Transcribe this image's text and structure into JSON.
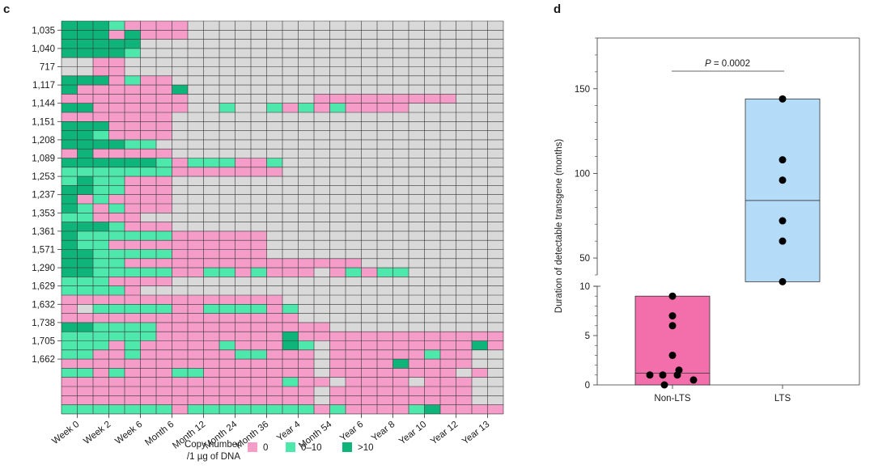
{
  "chart_data": [
    {
      "panel": "c",
      "type": "heatmap",
      "row_labels": [
        "1,035",
        "1,040",
        "717",
        "1,117",
        "1,144",
        "1,151",
        "1,208",
        "1,089",
        "1,253",
        "1,237",
        "1,353",
        "1,361",
        "1,571",
        "1,290",
        "1,629",
        "1,632",
        "1,738",
        "1,705",
        "1,662"
      ],
      "column_labels": [
        "Week 0",
        "Week 2",
        "Week 6",
        "Month 6",
        "Month 12",
        "Month 24",
        "Month 36",
        "Year 4",
        "Month 54",
        "Year 6",
        "Year 8",
        "Year 10",
        "Year 12",
        "Year 13"
      ],
      "legend": {
        "title_line1": "Copy number",
        "title_line2": "/1 µg of DNA",
        "items": [
          {
            "key": "P",
            "label": "0",
            "color": "#f59cc9"
          },
          {
            "key": "L",
            "label": "0–10",
            "color": "#4ee7ac"
          },
          {
            "key": "D",
            "label": ">10",
            "color": "#0fb47a"
          }
        ],
        "missing_color": "#d9d9d9"
      },
      "grid": [
        "DDDLPPPPGGGGGGGGGGGGGGGGGGGG",
        "DDDPDPPPGGGGGGGGGGGGGGGGGGGG",
        "DDDDDGGGGGGGGGGGGGGGGGGGGGGG",
        "DDDDLGGGGGGGGGGGGGGGGGGGGGGG",
        "GGPPGGGGGGGGGGGGGGGGGGGGGGGG",
        "GGPPGGGGGGGGGGGGGGGGGGGGGGGG",
        "DDDPLPPGGGGGGGGGGGGGGGGGGGGG",
        "DPPPPPPDGGGGGGGGGGGGGGGGGGGG",
        "PPPPPPPPGGGGGGGGPPPPPPPPPGGG",
        "DDPPPPPPGGLGGLPLPLPPPPGGGGGG",
        "PPPPPPPGGGGGGGGGGGGGGGGGGGGG",
        "DDDPPPPGGGGGGGGGGGGGGGGGGGGG",
        "DDLPPPPGGGGGGGGGGGGGGGGGGGGG",
        "DDDDLLGGGGGGGGGGGGGGGGGGGGGG",
        "PDPPPPPGGGGGGGGGGGGGGGGGGGGG",
        "DDDDDDLPLLLPPLGGGGGGGGGGGGGG",
        "LLLLLLLPPPPPPPGGGGGGGGGGGGGG",
        "LDLLPPPGGGGGGGGGGGGGGGGGGGGG",
        "DDLLPPPGGGGGGGGGGGGGGGGGGGGG",
        "DPLPPPPGGGGGGGGGGGGGGGGGGGGG",
        "DLPLPPPGGGGGGGGGGGGGGGGGGGGG",
        "LLPPPGGGGGGGGGGGGGGGGGGGGGGG",
        "DDDLPPPGGGGGGGGGGGGGGGGGGGGG",
        "DLLLLLLPPPPPPGGGGGGGGGGGGGGG",
        "DLLPPPPPPPPPPGGGGGGGGGGGGGGG",
        "DDLLLLLPPPPPPGGGGGGGGGGGGGGG",
        "DDLLPPPPPPPPPPPPPPPGGGGGGGGG",
        "DDLLLLLPPLLPLPPPGPLPLLGGGGGG",
        "LLLPPPPGGGGGGGGGGGGGGGGGGGGG",
        "LLLLPGGGGGGGGGGGGGGGGGGGGGGG",
        "PPPPPPPPPPPPPPGGGGGGGGGGGGGG",
        "PGLLLLLPPLLLLPLGGGGGGGGGGGGG",
        "PPPPPPPPPPPPPPPGGGGGGGGGGGGG",
        "DDLLLLPPPPPPPPPPPGGGGGGGGGGG",
        "LLLLLLPPPPPPPPDPPPPPPPPPPPPP",
        "LLLPLPPPPPLPPPDLGPPPPPPPPPDP",
        "LLPPLPPPPPPLLPPPGPPPPPPLPPGG",
        "PPPPPPPPPPPPPPPPGPPPPDPPPPGG",
        "LLPLPPPLLPPPPPPPGPPPPPPPPGPG",
        "PPPPPPPPPPPPPPLPPGPPPPGPPPGG",
        "PPPPPPPPPPPPPPPPGPPPPPPPPPGG",
        "PPPPPPPPPPPPPPPPGPPPPPPPPPGG",
        "LLLLLLLPLLLLLLLLPLPPPPLDPPPP"
      ]
    },
    {
      "panel": "d",
      "type": "box",
      "ylabel": "Duration of detectable transgene (months)",
      "categories": [
        "Non-LTS",
        "LTS"
      ],
      "annotation": {
        "italic": "P",
        "text": " = 0.0002"
      },
      "yticks_lower": [
        0,
        5,
        10
      ],
      "yticks_upper": [
        50,
        100,
        150
      ],
      "ylim_lower": [
        0,
        10
      ],
      "ylim_upper": [
        40,
        180
      ],
      "series": [
        {
          "category": "Non-LTS",
          "color": "#f36fab",
          "box_min": 0,
          "box_max": 9,
          "median": 1.2,
          "points": [
            9,
            7,
            6,
            3,
            1.5,
            1,
            1,
            1,
            0.5,
            0
          ]
        },
        {
          "category": "LTS",
          "color": "#b4dcf9",
          "box_min": 36,
          "box_max": 144,
          "median": 84,
          "points": [
            144,
            108,
            96,
            72,
            60,
            36
          ]
        }
      ]
    }
  ]
}
